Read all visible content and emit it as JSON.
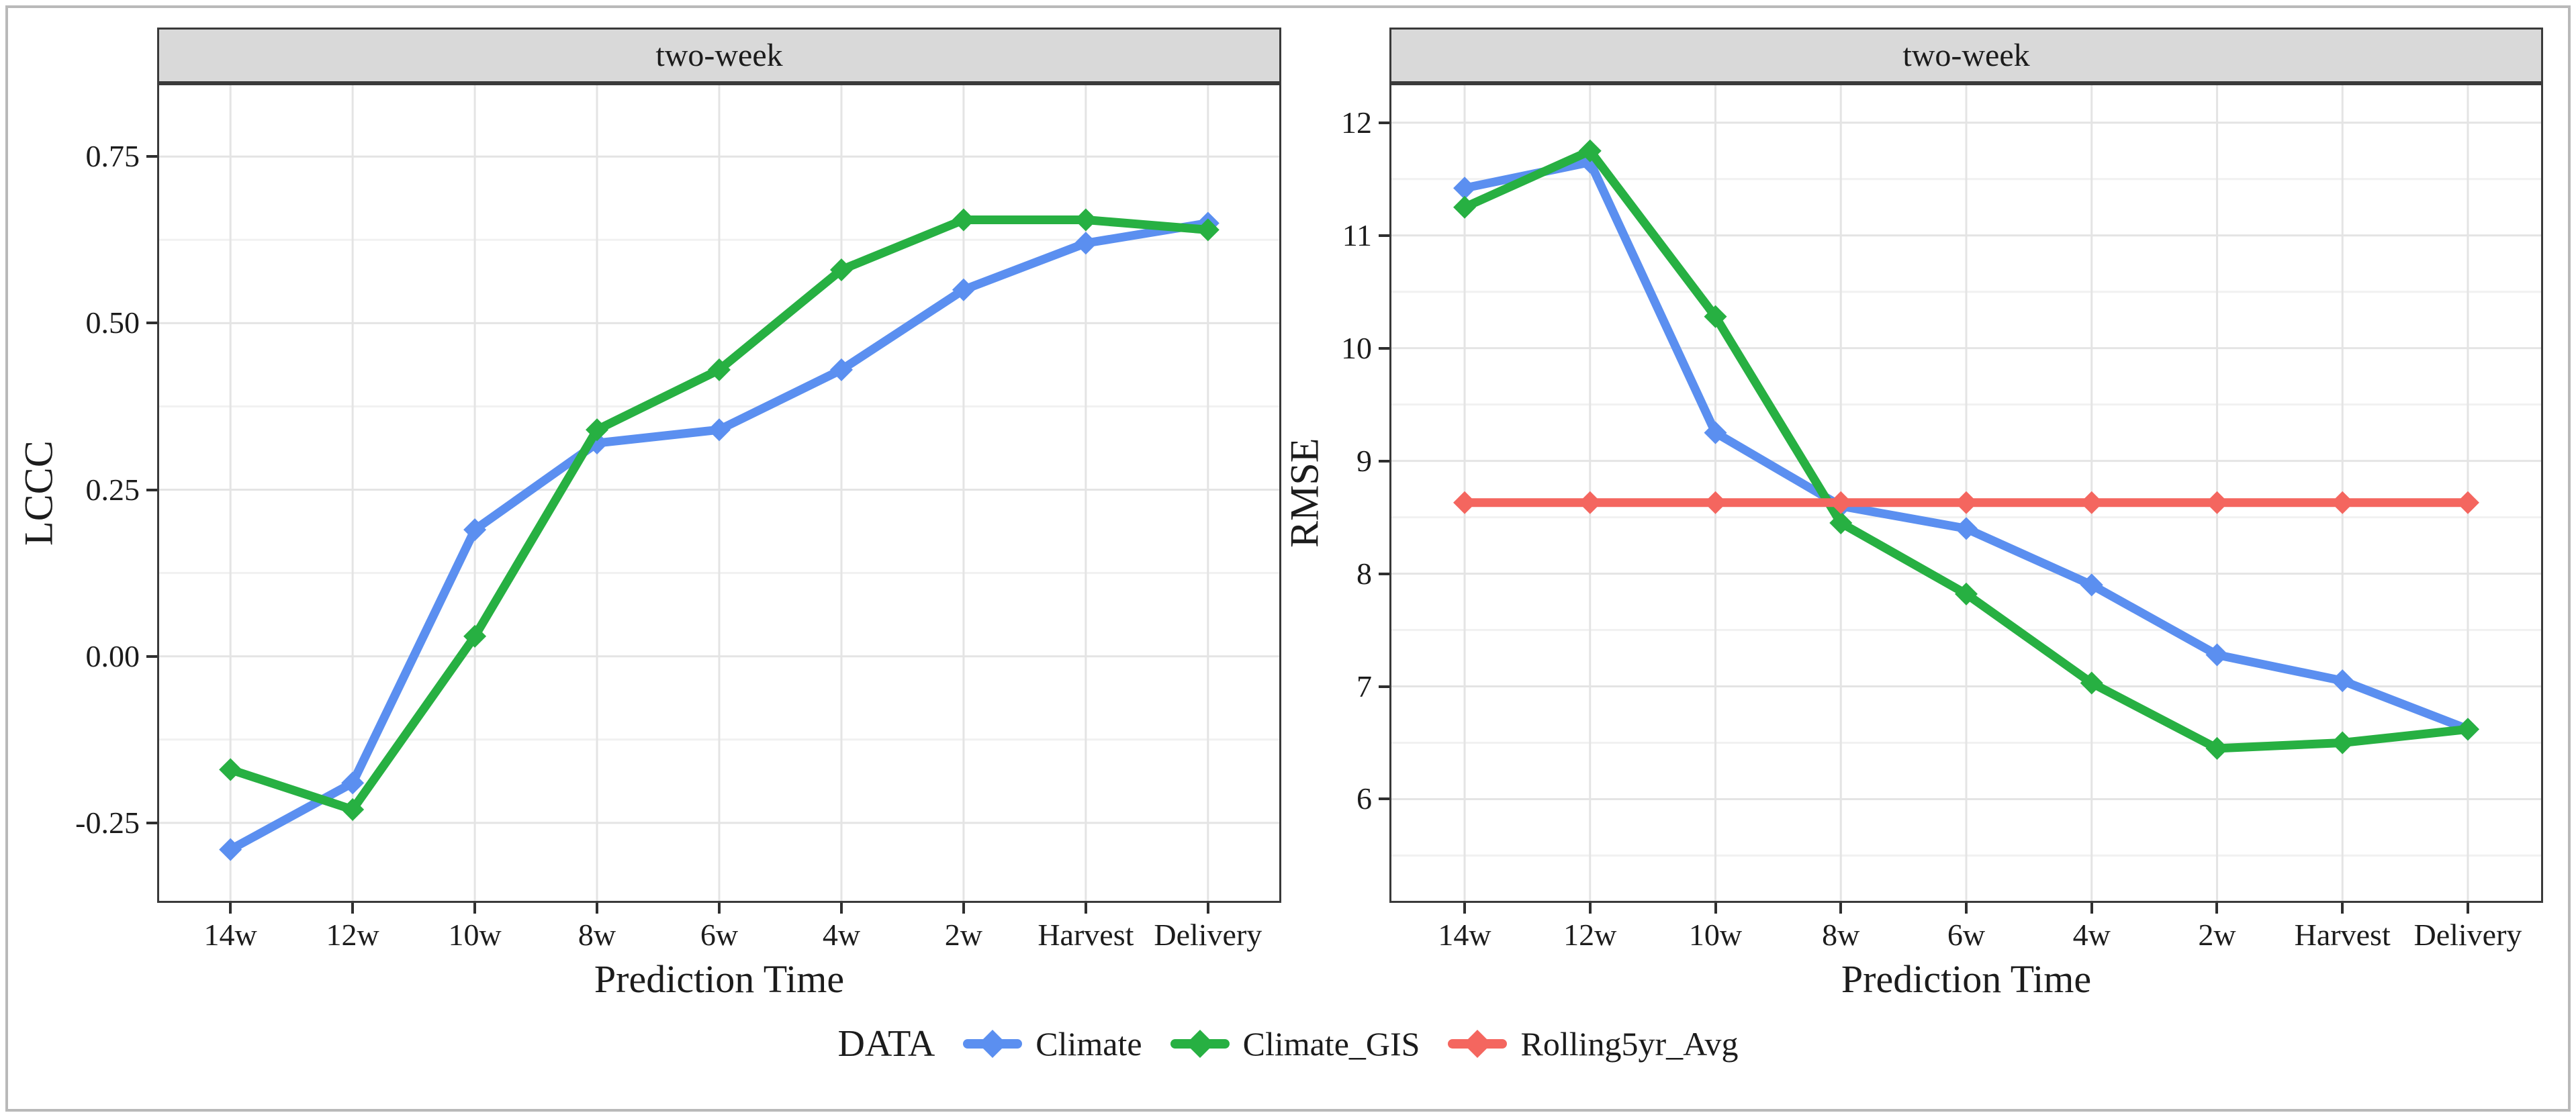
{
  "figure": {
    "background": "#ffffff",
    "frame_color": "#b9b9b9",
    "panel_border": "#3a3a3a",
    "strip_background": "#d9d9d9",
    "grid_major": "#e4e4e4",
    "grid_minor": "#f1f1f1",
    "text_color": "#1c1c1c"
  },
  "legend": {
    "title": "DATA",
    "position": "bottom",
    "items": [
      {
        "label": "Climate",
        "color": "#5b8ff0"
      },
      {
        "label": "Climate_GIS",
        "color": "#27b042"
      },
      {
        "label": "Rolling5yr_Avg",
        "color": "#f4665f"
      }
    ]
  },
  "chart_data": [
    {
      "type": "line",
      "panel_title": "two-week",
      "xlabel": "Prediction Time",
      "ylabel": "LCCC",
      "categories": [
        "14w",
        "12w",
        "10w",
        "8w",
        "6w",
        "4w",
        "2w",
        "Harvest",
        "Delivery"
      ],
      "ylim": [
        -0.37,
        0.86
      ],
      "grid": true,
      "marker": "diamond",
      "y_ticks": [
        {
          "value": 0.75,
          "label": "0.75"
        },
        {
          "value": 0.5,
          "label": "0.50"
        },
        {
          "value": 0.25,
          "label": "0.25"
        },
        {
          "value": 0.0,
          "label": "0.00"
        },
        {
          "value": -0.25,
          "label": "-0.25"
        }
      ],
      "y_minor": [
        0.625,
        0.375,
        0.125,
        -0.125
      ],
      "series": [
        {
          "name": "Climate",
          "color": "#5b8ff0",
          "values": [
            -0.29,
            -0.19,
            0.19,
            0.32,
            0.34,
            0.43,
            0.55,
            0.62,
            0.65
          ]
        },
        {
          "name": "Climate_GIS",
          "color": "#27b042",
          "values": [
            -0.17,
            -0.23,
            0.03,
            0.34,
            0.43,
            0.58,
            0.655,
            0.655,
            0.64
          ]
        }
      ]
    },
    {
      "type": "line",
      "panel_title": "two-week",
      "xlabel": "Prediction Time",
      "ylabel": "RMSE",
      "categories": [
        "14w",
        "12w",
        "10w",
        "8w",
        "6w",
        "4w",
        "2w",
        "Harvest",
        "Delivery"
      ],
      "ylim": [
        5.08,
        12.35
      ],
      "grid": true,
      "marker": "diamond",
      "y_ticks": [
        {
          "value": 12,
          "label": "12"
        },
        {
          "value": 11,
          "label": "11"
        },
        {
          "value": 10,
          "label": "10"
        },
        {
          "value": 9,
          "label": "9"
        },
        {
          "value": 8,
          "label": "8"
        },
        {
          "value": 7,
          "label": "7"
        },
        {
          "value": 6,
          "label": "6"
        }
      ],
      "y_minor": [
        11.5,
        10.5,
        9.5,
        8.5,
        7.5,
        6.5,
        5.5
      ],
      "series": [
        {
          "name": "Climate",
          "color": "#5b8ff0",
          "values": [
            11.42,
            11.65,
            9.25,
            8.6,
            8.4,
            7.9,
            7.28,
            7.05,
            6.62
          ]
        },
        {
          "name": "Climate_GIS",
          "color": "#27b042",
          "values": [
            11.25,
            11.75,
            10.28,
            8.45,
            7.82,
            7.03,
            6.45,
            6.5,
            6.62
          ]
        },
        {
          "name": "Rolling5yr_Avg",
          "color": "#f4665f",
          "values": [
            8.63,
            8.63,
            8.63,
            8.63,
            8.63,
            8.63,
            8.63,
            8.63,
            8.63
          ]
        }
      ]
    }
  ]
}
